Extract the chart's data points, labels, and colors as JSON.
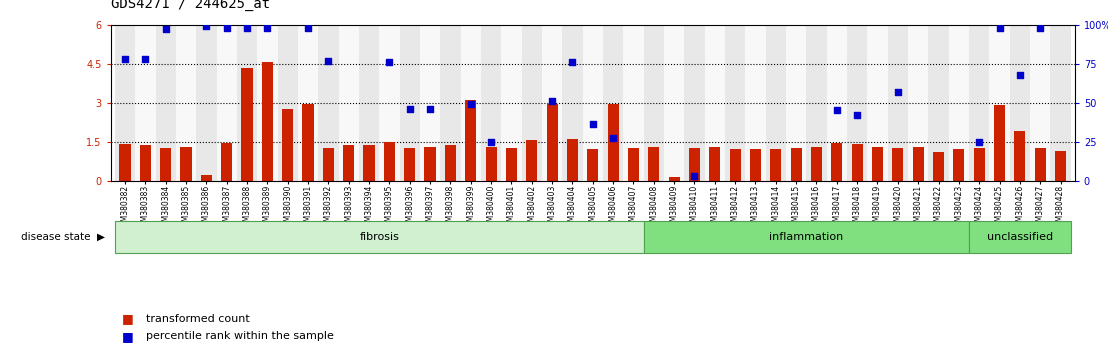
{
  "title": "GDS4271 / 244625_at",
  "samples": [
    "GSM380382",
    "GSM380383",
    "GSM380384",
    "GSM380385",
    "GSM380386",
    "GSM380387",
    "GSM380388",
    "GSM380389",
    "GSM380390",
    "GSM380391",
    "GSM380392",
    "GSM380393",
    "GSM380394",
    "GSM380395",
    "GSM380396",
    "GSM380397",
    "GSM380398",
    "GSM380399",
    "GSM380400",
    "GSM380401",
    "GSM380402",
    "GSM380403",
    "GSM380404",
    "GSM380405",
    "GSM380406",
    "GSM380407",
    "GSM380408",
    "GSM380409",
    "GSM380410",
    "GSM380411",
    "GSM380412",
    "GSM380413",
    "GSM380414",
    "GSM380415",
    "GSM380416",
    "GSM380417",
    "GSM380418",
    "GSM380419",
    "GSM380420",
    "GSM380421",
    "GSM380422",
    "GSM380423",
    "GSM380424",
    "GSM380425",
    "GSM380426",
    "GSM380427",
    "GSM380428"
  ],
  "bar_values": [
    1.4,
    1.35,
    1.25,
    1.3,
    0.2,
    1.45,
    4.35,
    4.55,
    2.75,
    2.95,
    1.25,
    1.35,
    1.35,
    1.5,
    1.25,
    1.3,
    1.35,
    3.1,
    1.3,
    1.25,
    1.55,
    2.95,
    1.6,
    1.2,
    2.95,
    1.25,
    1.3,
    0.15,
    1.25,
    1.3,
    1.2,
    1.2,
    1.2,
    1.25,
    1.3,
    1.45,
    1.4,
    1.3,
    1.25,
    1.3,
    1.1,
    1.2,
    1.25,
    2.9,
    1.9,
    1.25,
    1.15
  ],
  "percentile_pct": [
    78,
    78,
    97,
    null,
    99,
    98,
    98,
    98,
    null,
    98,
    77,
    null,
    null,
    76,
    46,
    46,
    null,
    49,
    25,
    null,
    null,
    51,
    76,
    36,
    27,
    null,
    null,
    null,
    3,
    null,
    null,
    null,
    null,
    null,
    null,
    45,
    42,
    null,
    57,
    null,
    null,
    null,
    25,
    98,
    68,
    98,
    null
  ],
  "group_data": [
    {
      "label": "fibrosis",
      "start": 0,
      "end": 26,
      "facecolor": "#d0f0d0",
      "edgecolor": "#50a050"
    },
    {
      "label": "inflammation",
      "start": 26,
      "end": 42,
      "facecolor": "#80e080",
      "edgecolor": "#50a050"
    },
    {
      "label": "unclassified",
      "start": 42,
      "end": 47,
      "facecolor": "#80e080",
      "edgecolor": "#50a050"
    }
  ],
  "ylim_left": [
    0,
    6
  ],
  "ylim_right": [
    0,
    100
  ],
  "yticks_left": [
    0,
    1.5,
    3.0,
    4.5,
    6.0
  ],
  "yticks_right": [
    0,
    25,
    50,
    75,
    100
  ],
  "ytick_labels_left": [
    "0",
    "1.5",
    "3",
    "4.5",
    "6"
  ],
  "ytick_labels_right": [
    "0",
    "25",
    "50",
    "75",
    "100%"
  ],
  "dotted_lines_pct": [
    25,
    50,
    75
  ],
  "bar_color": "#cc2200",
  "scatter_color": "#0000cc",
  "title_fontsize": 10,
  "tick_fontsize": 7,
  "xlabel_fontsize": 5.5
}
